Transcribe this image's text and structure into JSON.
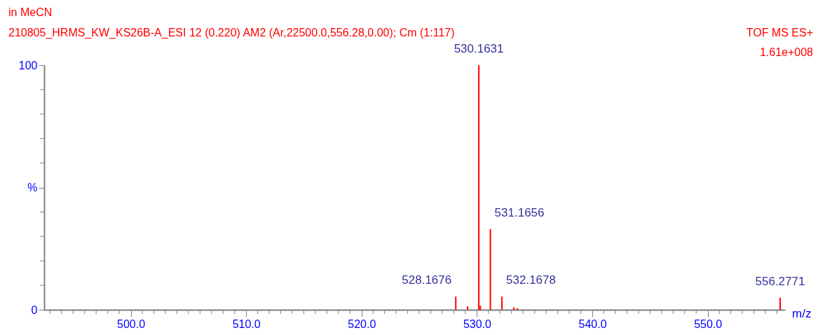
{
  "chart_data": {
    "type": "bar",
    "title": "in MeCN",
    "subtitle": "210805_HRMS_KW_KS26B-A_ESI 12 (0.220) AM2 (Ar,22500.0,556.28,0.00); Cm (1:117)",
    "xlabel": "m/z",
    "x": [
      528.1676,
      529.2,
      530.1631,
      530.3,
      531.1656,
      532.1678,
      533.2,
      533.5,
      556.2771
    ],
    "series": [
      {
        "color": "#ff0000",
        "values": [
          5.4,
          1.4,
          100,
          1.7,
          33,
          5.4,
          1.0,
          0.6,
          4.9
        ]
      }
    ],
    "annotations": [
      "TOF MS ES+",
      "1.61e+008",
      {
        "text": "528.1676",
        "x": 528.1676,
        "y": 5.4
      },
      {
        "text": "530.1631",
        "x": 530.1631,
        "y": 100
      },
      {
        "text": "531.1656",
        "x": 531.1656,
        "y": 33
      },
      {
        "text": "532.1678",
        "x": 532.1678,
        "y": 5.4
      },
      {
        "text": "556.2771",
        "x": 556.2771,
        "y": 4.9
      }
    ],
    "xlim": [
      492.8,
      556.4
    ],
    "xticks": [
      {
        "value": 493,
        "label": null
      },
      {
        "value": 494,
        "label": null
      },
      {
        "value": 495,
        "label": null
      },
      {
        "value": 496,
        "label": null
      },
      {
        "value": 497,
        "label": null
      },
      {
        "value": 498,
        "label": null
      },
      {
        "value": 499,
        "label": null
      },
      {
        "value": 500,
        "label": "500.0"
      },
      {
        "value": 501,
        "label": null
      },
      {
        "value": 502,
        "label": null
      },
      {
        "value": 503,
        "label": null
      },
      {
        "value": 504,
        "label": null
      },
      {
        "value": 505,
        "label": null
      },
      {
        "value": 506,
        "label": null
      },
      {
        "value": 507,
        "label": null
      },
      {
        "value": 508,
        "label": null
      },
      {
        "value": 509,
        "label": null
      },
      {
        "value": 510,
        "label": "510.0"
      },
      {
        "value": 511,
        "label": null
      },
      {
        "value": 512,
        "label": null
      },
      {
        "value": 513,
        "label": null
      },
      {
        "value": 514,
        "label": null
      },
      {
        "value": 515,
        "label": null
      },
      {
        "value": 516,
        "label": null
      },
      {
        "value": 517,
        "label": null
      },
      {
        "value": 518,
        "label": null
      },
      {
        "value": 519,
        "label": null
      },
      {
        "value": 520,
        "label": "520.0"
      },
      {
        "value": 521,
        "label": null
      },
      {
        "value": 522,
        "label": null
      },
      {
        "value": 523,
        "label": null
      },
      {
        "value": 524,
        "label": null
      },
      {
        "value": 525,
        "label": null
      },
      {
        "value": 526,
        "label": null
      },
      {
        "value": 527,
        "label": null
      },
      {
        "value": 528,
        "label": null
      },
      {
        "value": 529,
        "label": null
      },
      {
        "value": 530,
        "label": "530.0"
      },
      {
        "value": 531,
        "label": null
      },
      {
        "value": 532,
        "label": null
      },
      {
        "value": 533,
        "label": null
      },
      {
        "value": 534,
        "label": null
      },
      {
        "value": 535,
        "label": null
      },
      {
        "value": 536,
        "label": null
      },
      {
        "value": 537,
        "label": null
      },
      {
        "value": 538,
        "label": null
      },
      {
        "value": 539,
        "label": null
      },
      {
        "value": 540,
        "label": "540.0"
      },
      {
        "value": 541,
        "label": null
      },
      {
        "value": 542,
        "label": null
      },
      {
        "value": 543,
        "label": null
      },
      {
        "value": 544,
        "label": null
      },
      {
        "value": 545,
        "label": null
      },
      {
        "value": 546,
        "label": null
      },
      {
        "value": 547,
        "label": null
      },
      {
        "value": 548,
        "label": null
      },
      {
        "value": 549,
        "label": null
      },
      {
        "value": 550,
        "label": "550.0"
      },
      {
        "value": 551,
        "label": null
      },
      {
        "value": 552,
        "label": null
      },
      {
        "value": 553,
        "label": null
      },
      {
        "value": 554,
        "label": null
      },
      {
        "value": 555,
        "label": null
      },
      {
        "value": 556,
        "label": null
      }
    ],
    "ylim": [
      0,
      100
    ],
    "yticks": [
      0,
      {
        "value": 10,
        "label": null
      },
      {
        "value": 20,
        "label": null
      },
      {
        "value": 30,
        "label": null
      },
      {
        "value": 40,
        "label": null
      },
      {
        "value": 50,
        "label": "%"
      },
      {
        "value": 60,
        "label": null
      },
      {
        "value": 70,
        "label": null
      },
      {
        "value": 80,
        "label": null
      },
      {
        "value": 90,
        "label": null
      },
      100
    ],
    "grid": false
  }
}
